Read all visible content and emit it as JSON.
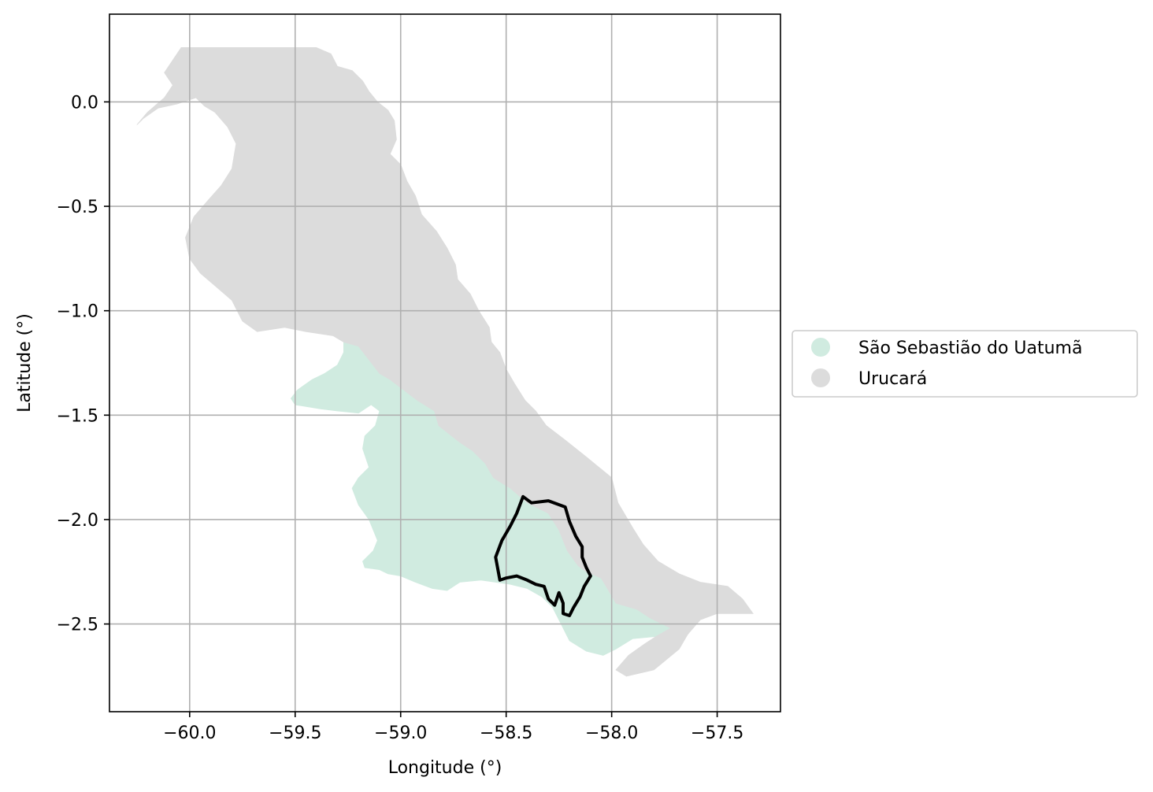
{
  "chart_data": {
    "type": "map",
    "xlabel": "Longitude (°)",
    "ylabel": "Latitude (°)",
    "xlim": [
      -60.38,
      -57.2
    ],
    "ylim": [
      -2.92,
      0.42
    ],
    "grid": true,
    "x_ticks": [
      -60.0,
      -59.5,
      -59.0,
      -58.5,
      -58.0,
      -57.5
    ],
    "x_tick_labels": [
      "−60.0",
      "−59.5",
      "−59.0",
      "−58.5",
      "−58.0",
      "−57.5"
    ],
    "y_ticks": [
      0.0,
      -0.5,
      -1.0,
      -1.5,
      -2.0,
      -2.5
    ],
    "y_tick_labels": [
      "0.0",
      "−0.5",
      "−1.0",
      "−1.5",
      "−2.0",
      "−2.5"
    ],
    "legend_position": "center-right-outside",
    "regions": [
      {
        "name": "São Sebastião do Uatumã",
        "color": "#d0ebe0",
        "polygon": [
          [
            -59.27,
            -1.15
          ],
          [
            -59.2,
            -1.17
          ],
          [
            -59.1,
            -1.3
          ],
          [
            -59.05,
            -1.33
          ],
          [
            -58.92,
            -1.43
          ],
          [
            -58.84,
            -1.48
          ],
          [
            -58.82,
            -1.55
          ],
          [
            -58.72,
            -1.63
          ],
          [
            -58.66,
            -1.67
          ],
          [
            -58.6,
            -1.73
          ],
          [
            -58.56,
            -1.8
          ],
          [
            -58.48,
            -1.85
          ],
          [
            -58.4,
            -1.92
          ],
          [
            -58.3,
            -1.97
          ],
          [
            -58.25,
            -2.05
          ],
          [
            -58.21,
            -2.15
          ],
          [
            -58.16,
            -2.22
          ],
          [
            -58.12,
            -2.25
          ],
          [
            -58.05,
            -2.28
          ],
          [
            -58.02,
            -2.33
          ],
          [
            -57.98,
            -2.4
          ],
          [
            -57.88,
            -2.43
          ],
          [
            -57.82,
            -2.47
          ],
          [
            -57.72,
            -2.52
          ],
          [
            -57.79,
            -2.56
          ],
          [
            -57.9,
            -2.57
          ],
          [
            -57.98,
            -2.62
          ],
          [
            -58.04,
            -2.65
          ],
          [
            -58.12,
            -2.63
          ],
          [
            -58.2,
            -2.58
          ],
          [
            -58.24,
            -2.5
          ],
          [
            -58.28,
            -2.42
          ],
          [
            -58.33,
            -2.37
          ],
          [
            -58.4,
            -2.33
          ],
          [
            -58.48,
            -2.31
          ],
          [
            -58.55,
            -2.3
          ],
          [
            -58.62,
            -2.29
          ],
          [
            -58.72,
            -2.3
          ],
          [
            -58.78,
            -2.34
          ],
          [
            -58.85,
            -2.33
          ],
          [
            -58.93,
            -2.3
          ],
          [
            -59.0,
            -2.27
          ],
          [
            -59.06,
            -2.26
          ],
          [
            -59.1,
            -2.24
          ],
          [
            -59.17,
            -2.23
          ],
          [
            -59.18,
            -2.2
          ],
          [
            -59.13,
            -2.15
          ],
          [
            -59.11,
            -2.1
          ],
          [
            -59.13,
            -2.05
          ],
          [
            -59.15,
            -2.0
          ],
          [
            -59.2,
            -1.93
          ],
          [
            -59.23,
            -1.85
          ],
          [
            -59.2,
            -1.8
          ],
          [
            -59.15,
            -1.75
          ],
          [
            -59.18,
            -1.66
          ],
          [
            -59.17,
            -1.6
          ],
          [
            -59.12,
            -1.55
          ],
          [
            -59.1,
            -1.48
          ],
          [
            -59.14,
            -1.45
          ],
          [
            -59.2,
            -1.49
          ],
          [
            -59.3,
            -1.48
          ],
          [
            -59.38,
            -1.47
          ],
          [
            -59.5,
            -1.45
          ],
          [
            -59.52,
            -1.42
          ],
          [
            -59.49,
            -1.38
          ],
          [
            -59.42,
            -1.33
          ],
          [
            -59.36,
            -1.3
          ],
          [
            -59.3,
            -1.26
          ],
          [
            -59.27,
            -1.2
          ]
        ]
      },
      {
        "name": "Urucará",
        "color": "#dcdcdc",
        "polygon": [
          [
            -60.04,
            0.26
          ],
          [
            -59.4,
            0.26
          ],
          [
            -59.33,
            0.23
          ],
          [
            -59.3,
            0.17
          ],
          [
            -59.23,
            0.15
          ],
          [
            -59.18,
            0.1
          ],
          [
            -59.15,
            0.05
          ],
          [
            -59.11,
            0.0
          ],
          [
            -59.06,
            -0.04
          ],
          [
            -59.03,
            -0.09
          ],
          [
            -59.02,
            -0.18
          ],
          [
            -59.05,
            -0.25
          ],
          [
            -59.0,
            -0.3
          ],
          [
            -58.97,
            -0.38
          ],
          [
            -58.93,
            -0.45
          ],
          [
            -58.9,
            -0.54
          ],
          [
            -58.83,
            -0.62
          ],
          [
            -58.78,
            -0.7
          ],
          [
            -58.74,
            -0.78
          ],
          [
            -58.73,
            -0.85
          ],
          [
            -58.67,
            -0.92
          ],
          [
            -58.63,
            -1.0
          ],
          [
            -58.58,
            -1.08
          ],
          [
            -58.57,
            -1.15
          ],
          [
            -58.53,
            -1.2
          ],
          [
            -58.5,
            -1.28
          ],
          [
            -58.46,
            -1.35
          ],
          [
            -58.41,
            -1.43
          ],
          [
            -58.36,
            -1.48
          ],
          [
            -58.31,
            -1.55
          ],
          [
            -58.22,
            -1.62
          ],
          [
            -58.12,
            -1.7
          ],
          [
            -58.0,
            -1.8
          ],
          [
            -57.97,
            -1.92
          ],
          [
            -57.9,
            -2.04
          ],
          [
            -57.85,
            -2.12
          ],
          [
            -57.78,
            -2.2
          ],
          [
            -57.68,
            -2.26
          ],
          [
            -57.58,
            -2.3
          ],
          [
            -57.45,
            -2.32
          ],
          [
            -57.38,
            -2.38
          ],
          [
            -57.33,
            -2.45
          ],
          [
            -57.5,
            -2.45
          ],
          [
            -57.58,
            -2.48
          ],
          [
            -57.64,
            -2.55
          ],
          [
            -57.68,
            -2.62
          ],
          [
            -57.74,
            -2.67
          ],
          [
            -57.8,
            -2.72
          ],
          [
            -57.93,
            -2.75
          ],
          [
            -57.98,
            -2.72
          ],
          [
            -57.92,
            -2.65
          ],
          [
            -57.85,
            -2.6
          ],
          [
            -57.79,
            -2.56
          ],
          [
            -57.72,
            -2.52
          ],
          [
            -57.82,
            -2.47
          ],
          [
            -57.88,
            -2.43
          ],
          [
            -57.98,
            -2.4
          ],
          [
            -58.02,
            -2.33
          ],
          [
            -58.05,
            -2.28
          ],
          [
            -58.12,
            -2.25
          ],
          [
            -58.16,
            -2.22
          ],
          [
            -58.21,
            -2.15
          ],
          [
            -58.25,
            -2.05
          ],
          [
            -58.3,
            -1.97
          ],
          [
            -58.4,
            -1.92
          ],
          [
            -58.48,
            -1.85
          ],
          [
            -58.56,
            -1.8
          ],
          [
            -58.6,
            -1.73
          ],
          [
            -58.66,
            -1.67
          ],
          [
            -58.72,
            -1.63
          ],
          [
            -58.82,
            -1.55
          ],
          [
            -58.84,
            -1.48
          ],
          [
            -58.92,
            -1.43
          ],
          [
            -59.05,
            -1.33
          ],
          [
            -59.1,
            -1.3
          ],
          [
            -59.2,
            -1.17
          ],
          [
            -59.27,
            -1.15
          ],
          [
            -59.32,
            -1.12
          ],
          [
            -59.45,
            -1.1
          ],
          [
            -59.55,
            -1.08
          ],
          [
            -59.68,
            -1.1
          ],
          [
            -59.75,
            -1.05
          ],
          [
            -59.8,
            -0.95
          ],
          [
            -59.88,
            -0.88
          ],
          [
            -59.95,
            -0.82
          ],
          [
            -60.0,
            -0.75
          ],
          [
            -60.02,
            -0.65
          ],
          [
            -59.98,
            -0.55
          ],
          [
            -59.92,
            -0.48
          ],
          [
            -59.85,
            -0.4
          ],
          [
            -59.8,
            -0.32
          ],
          [
            -59.78,
            -0.2
          ],
          [
            -59.82,
            -0.12
          ],
          [
            -59.88,
            -0.05
          ],
          [
            -59.93,
            -0.02
          ],
          [
            -59.97,
            0.02
          ],
          [
            -60.06,
            -0.01
          ],
          [
            -60.15,
            -0.03
          ],
          [
            -60.22,
            -0.08
          ],
          [
            -60.25,
            -0.11
          ],
          [
            -60.2,
            -0.05
          ],
          [
            -60.12,
            0.02
          ],
          [
            -60.08,
            0.08
          ],
          [
            -60.12,
            0.14
          ],
          [
            -60.08,
            0.2
          ]
        ]
      }
    ],
    "outline": {
      "color": "#000000",
      "polygon": [
        [
          -58.42,
          -1.89
        ],
        [
          -58.38,
          -1.92
        ],
        [
          -58.3,
          -1.91
        ],
        [
          -58.22,
          -1.94
        ],
        [
          -58.2,
          -2.01
        ],
        [
          -58.17,
          -2.08
        ],
        [
          -58.14,
          -2.13
        ],
        [
          -58.14,
          -2.18
        ],
        [
          -58.12,
          -2.23
        ],
        [
          -58.1,
          -2.27
        ],
        [
          -58.13,
          -2.32
        ],
        [
          -58.15,
          -2.37
        ],
        [
          -58.18,
          -2.42
        ],
        [
          -58.2,
          -2.46
        ],
        [
          -58.23,
          -2.45
        ],
        [
          -58.23,
          -2.4
        ],
        [
          -58.25,
          -2.35
        ],
        [
          -58.27,
          -2.41
        ],
        [
          -58.3,
          -2.38
        ],
        [
          -58.32,
          -2.32
        ],
        [
          -58.36,
          -2.31
        ],
        [
          -58.4,
          -2.29
        ],
        [
          -58.45,
          -2.27
        ],
        [
          -58.5,
          -2.28
        ],
        [
          -58.53,
          -2.29
        ],
        [
          -58.55,
          -2.18
        ],
        [
          -58.52,
          -2.1
        ],
        [
          -58.48,
          -2.03
        ],
        [
          -58.45,
          -1.97
        ]
      ]
    }
  },
  "legend": {
    "items": [
      {
        "label": "São Sebastião do Uatumã",
        "color": "#d0ebe0"
      },
      {
        "label": "Urucará",
        "color": "#dcdcdc"
      }
    ]
  }
}
